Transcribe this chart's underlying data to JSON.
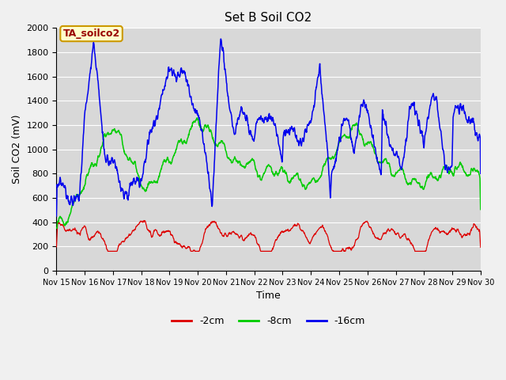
{
  "title": "Set B Soil CO2",
  "ylabel": "Soil CO2 (mV)",
  "xlabel": "Time",
  "ylim": [
    0,
    2000
  ],
  "xlim": [
    0,
    15
  ],
  "x_tick_labels": [
    "Nov 15",
    "Nov 16",
    "Nov 17",
    "Nov 18",
    "Nov 19",
    "Nov 20",
    "Nov 21",
    "Nov 22",
    "Nov 23",
    "Nov 24",
    "Nov 25",
    "Nov 26",
    "Nov 27",
    "Nov 28",
    "Nov 29",
    "Nov 30"
  ],
  "legend_labels": [
    "-2cm",
    "-8cm",
    "-16cm"
  ],
  "legend_colors": [
    "#dd0000",
    "#00cc00",
    "#0000ee"
  ],
  "line_colors": [
    "#dd0000",
    "#00cc00",
    "#0000ee"
  ],
  "annotation_text": "TA_soilco2",
  "annotation_box_color": "#ffffcc",
  "annotation_box_edge": "#cc9900",
  "fig_bg_color": "#f0f0f0",
  "plot_bg_color": "#d8d8d8",
  "grid_color": "#ffffff",
  "title_fontsize": 11,
  "axis_label_fontsize": 9,
  "tick_fontsize": 8,
  "yticks": [
    0,
    200,
    400,
    600,
    800,
    1000,
    1200,
    1400,
    1600,
    1800,
    2000
  ]
}
